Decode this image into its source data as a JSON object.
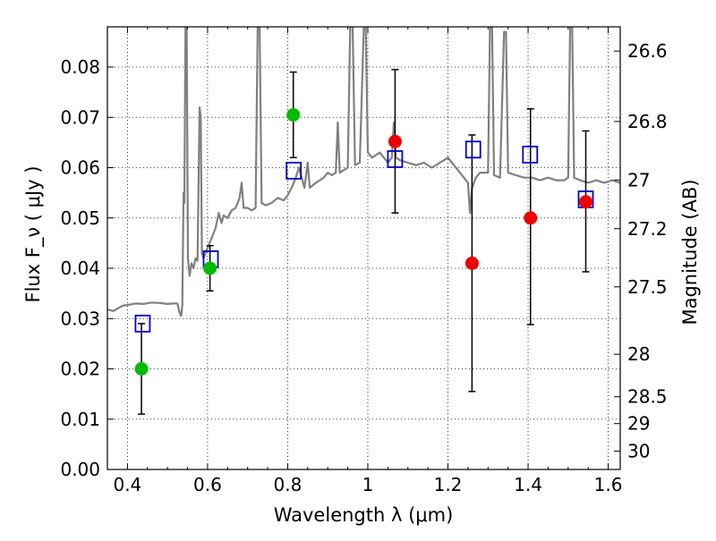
{
  "chart_data": {
    "type": "scatter",
    "xlabel": "Wavelength  λ (μm)",
    "ylabel": "Flux  F_ν  ( μJy )",
    "y2label": "Magnitude (AB)",
    "xlim": [
      0.35,
      1.63
    ],
    "ylim": [
      0.0,
      0.088
    ],
    "grid": true,
    "x_ticks": [
      "0.4",
      "0.6",
      "0.8",
      "1",
      "1.2",
      "1.4",
      "1.6"
    ],
    "y_ticks": [
      "0.00",
      "0.01",
      "0.02",
      "0.03",
      "0.04",
      "0.05",
      "0.06",
      "0.07",
      "0.08"
    ],
    "y2_ticks": [
      "26.6",
      "26.8",
      "27",
      "27.2",
      "27.5",
      "28",
      "28.5",
      "29",
      "30"
    ],
    "colors": {
      "model": "#808080",
      "box": "#0000cc",
      "green": "#00bb00",
      "red": "#ee0000",
      "errorbar": "#000000"
    },
    "series": [
      {
        "style": "green-circle",
        "points": [
          {
            "x": 0.435,
            "y": 0.02,
            "err_low": 0.011,
            "err_high": 0.029
          },
          {
            "x": 0.606,
            "y": 0.04,
            "err_low": 0.0355,
            "err_high": 0.0445
          },
          {
            "x": 0.814,
            "y": 0.0705,
            "err_low": 0.062,
            "err_high": 0.079
          }
        ]
      },
      {
        "style": "red-circle",
        "points": [
          {
            "x": 1.068,
            "y": 0.0652,
            "err_low": 0.051,
            "err_high": 0.0795
          },
          {
            "x": 1.26,
            "y": 0.041,
            "err_low": 0.0155,
            "err_high": 0.0665
          },
          {
            "x": 1.406,
            "y": 0.05,
            "err_low": 0.0288,
            "err_high": 0.0717
          },
          {
            "x": 1.544,
            "y": 0.0532,
            "err_low": 0.0393,
            "err_high": 0.0673
          }
        ]
      },
      {
        "style": "blue-square",
        "points": [
          {
            "x": 0.438,
            "y": 0.029
          },
          {
            "x": 0.608,
            "y": 0.0418
          },
          {
            "x": 0.815,
            "y": 0.0594
          },
          {
            "x": 1.068,
            "y": 0.0617
          },
          {
            "x": 1.263,
            "y": 0.0636
          },
          {
            "x": 1.405,
            "y": 0.0626
          },
          {
            "x": 1.544,
            "y": 0.0537
          }
        ]
      }
    ],
    "model_spectrum": [
      [
        0.35,
        0.0318
      ],
      [
        0.365,
        0.0315
      ],
      [
        0.38,
        0.0322
      ],
      [
        0.39,
        0.0326
      ],
      [
        0.4,
        0.0327
      ],
      [
        0.42,
        0.033
      ],
      [
        0.44,
        0.0329
      ],
      [
        0.46,
        0.0332
      ],
      [
        0.48,
        0.0331
      ],
      [
        0.5,
        0.0329
      ],
      [
        0.515,
        0.033
      ],
      [
        0.525,
        0.033
      ],
      [
        0.53,
        0.0312
      ],
      [
        0.534,
        0.0305
      ],
      [
        0.537,
        0.0326
      ],
      [
        0.54,
        0.055
      ],
      [
        0.542,
        0.053
      ],
      [
        0.545,
        0.089
      ],
      [
        0.548,
        0.088
      ],
      [
        0.551,
        0.042
      ],
      [
        0.555,
        0.0385
      ],
      [
        0.56,
        0.041
      ],
      [
        0.565,
        0.04
      ],
      [
        0.57,
        0.042
      ],
      [
        0.575,
        0.0415
      ],
      [
        0.58,
        0.072
      ],
      [
        0.583,
        0.07
      ],
      [
        0.586,
        0.043
      ],
      [
        0.59,
        0.042
      ],
      [
        0.6,
        0.044
      ],
      [
        0.61,
        0.046
      ],
      [
        0.62,
        0.048
      ],
      [
        0.628,
        0.051
      ],
      [
        0.635,
        0.049
      ],
      [
        0.64,
        0.0505
      ],
      [
        0.65,
        0.05
      ],
      [
        0.66,
        0.0515
      ],
      [
        0.67,
        0.052
      ],
      [
        0.68,
        0.054
      ],
      [
        0.685,
        0.057
      ],
      [
        0.69,
        0.052
      ],
      [
        0.7,
        0.052
      ],
      [
        0.71,
        0.0515
      ],
      [
        0.72,
        0.052
      ],
      [
        0.725,
        0.088
      ],
      [
        0.73,
        0.088
      ],
      [
        0.735,
        0.053
      ],
      [
        0.745,
        0.0525
      ],
      [
        0.76,
        0.053
      ],
      [
        0.775,
        0.054
      ],
      [
        0.79,
        0.0535
      ],
      [
        0.8,
        0.0545
      ],
      [
        0.81,
        0.056
      ],
      [
        0.82,
        0.058
      ],
      [
        0.828,
        0.06
      ],
      [
        0.835,
        0.058
      ],
      [
        0.842,
        0.056
      ],
      [
        0.85,
        0.061
      ],
      [
        0.855,
        0.056
      ],
      [
        0.87,
        0.057
      ],
      [
        0.88,
        0.0575
      ],
      [
        0.89,
        0.058
      ],
      [
        0.9,
        0.059
      ],
      [
        0.91,
        0.0585
      ],
      [
        0.92,
        0.059
      ],
      [
        0.925,
        0.069
      ],
      [
        0.93,
        0.059
      ],
      [
        0.94,
        0.0595
      ],
      [
        0.95,
        0.06
      ],
      [
        0.956,
        0.088
      ],
      [
        0.962,
        0.088
      ],
      [
        0.968,
        0.0605
      ],
      [
        0.98,
        0.061
      ],
      [
        0.99,
        0.088
      ],
      [
        0.995,
        0.088
      ],
      [
        1.0,
        0.063
      ],
      [
        1.01,
        0.062
      ],
      [
        1.02,
        0.0625
      ],
      [
        1.03,
        0.063
      ],
      [
        1.04,
        0.062
      ],
      [
        1.05,
        0.061
      ],
      [
        1.06,
        0.062
      ],
      [
        1.065,
        0.069
      ],
      [
        1.07,
        0.062
      ],
      [
        1.08,
        0.0615
      ],
      [
        1.1,
        0.061
      ],
      [
        1.12,
        0.0605
      ],
      [
        1.14,
        0.061
      ],
      [
        1.16,
        0.06
      ],
      [
        1.18,
        0.061
      ],
      [
        1.2,
        0.062
      ],
      [
        1.22,
        0.06
      ],
      [
        1.24,
        0.058
      ],
      [
        1.25,
        0.057
      ],
      [
        1.255,
        0.051
      ],
      [
        1.26,
        0.056
      ],
      [
        1.27,
        0.058
      ],
      [
        1.28,
        0.059
      ],
      [
        1.3,
        0.059
      ],
      [
        1.305,
        0.088
      ],
      [
        1.31,
        0.088
      ],
      [
        1.315,
        0.0585
      ],
      [
        1.33,
        0.058
      ],
      [
        1.34,
        0.087
      ],
      [
        1.345,
        0.087
      ],
      [
        1.35,
        0.059
      ],
      [
        1.37,
        0.0585
      ],
      [
        1.39,
        0.058
      ],
      [
        1.41,
        0.058
      ],
      [
        1.43,
        0.0575
      ],
      [
        1.45,
        0.058
      ],
      [
        1.47,
        0.0575
      ],
      [
        1.49,
        0.0575
      ],
      [
        1.5,
        0.058
      ],
      [
        1.505,
        0.088
      ],
      [
        1.51,
        0.088
      ],
      [
        1.515,
        0.058
      ],
      [
        1.53,
        0.0575
      ],
      [
        1.55,
        0.057
      ],
      [
        1.57,
        0.0575
      ],
      [
        1.59,
        0.057
      ],
      [
        1.61,
        0.0575
      ],
      [
        1.63,
        0.057
      ]
    ]
  }
}
